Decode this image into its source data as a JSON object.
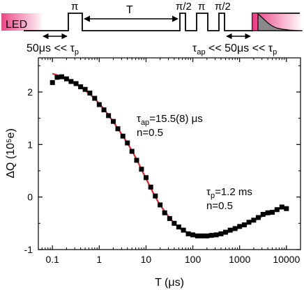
{
  "colors": {
    "pulse_line": "#000000",
    "led_pink": "#e8327a",
    "fit_curve": "#e8262a",
    "markers": "#000000",
    "decay_fill": "#8a8a8a"
  },
  "sequence": {
    "led_label": "LED",
    "pi1": "π",
    "T": "T",
    "pi2_half": "π/2",
    "pi3": "π",
    "pi4_half": "π/2",
    "delay_left_prefix": "50μs << τ",
    "delay_left_sub": "p",
    "delay_right_tau": "τ",
    "delay_right_sub1": "ap",
    "delay_right_mid": " << 50μs << τ",
    "delay_right_sub2": "p"
  },
  "annotations": {
    "a1_tau": "τ",
    "a1_sub": "ap",
    "a1_val": "=15.5(8) μs",
    "a1_n": "n=0.5",
    "a2_tau": "τ",
    "a2_sub": "p",
    "a2_val": "=1.2 ms",
    "a2_n": "n=0.5"
  },
  "chart_data": {
    "type": "scatter",
    "xscale": "log",
    "xlim": [
      0.05,
      20000
    ],
    "ylim": [
      -1,
      2.65
    ],
    "xlabel": "T (μs)",
    "ylabel": "ΔQ (10⁵e)",
    "xticks": [
      0.1,
      1,
      10,
      100,
      1000,
      10000
    ],
    "xtick_labels": [
      "0.1",
      "1",
      "10",
      "100",
      "1000",
      "10000"
    ],
    "yticks": [
      -1,
      0,
      1,
      2
    ],
    "ytick_labels": [
      "-1",
      "0",
      "1",
      "2"
    ],
    "series": [
      {
        "kind": "markers",
        "x": [
          0.1,
          0.126,
          0.158,
          0.2,
          0.25,
          0.32,
          0.4,
          0.5,
          0.63,
          0.8,
          1.0,
          1.26,
          1.58,
          2.0,
          2.5,
          3.2,
          4.0,
          5.0,
          6.3,
          8.0,
          10,
          12.6,
          15.8,
          20,
          25,
          32,
          40,
          50,
          63,
          80,
          100,
          126,
          158,
          200,
          250,
          316,
          400,
          500,
          630,
          800,
          1000,
          1260,
          1580,
          2000,
          2500,
          3160,
          4000,
          5000,
          6300,
          8000,
          10000
        ],
        "y": [
          2.18,
          2.28,
          2.29,
          2.25,
          2.2,
          2.16,
          2.1,
          2.05,
          1.98,
          1.88,
          1.76,
          1.66,
          1.55,
          1.44,
          1.3,
          1.16,
          1.03,
          0.87,
          0.7,
          0.53,
          0.37,
          0.19,
          0.02,
          -0.15,
          -0.3,
          -0.41,
          -0.5,
          -0.57,
          -0.63,
          -0.7,
          -0.72,
          -0.74,
          -0.74,
          -0.74,
          -0.73,
          -0.72,
          -0.7,
          -0.67,
          -0.63,
          -0.6,
          -0.56,
          -0.53,
          -0.48,
          -0.44,
          -0.39,
          -0.33,
          -0.3,
          -0.29,
          -0.24,
          -0.19,
          -0.22
        ]
      },
      {
        "kind": "fit",
        "x": [
          0.1,
          0.2,
          0.5,
          1,
          2,
          5,
          10,
          20,
          50,
          100,
          200,
          300,
          500,
          1000,
          2000,
          5000,
          8000,
          10000
        ],
        "y": [
          2.35,
          2.25,
          2.03,
          1.78,
          1.43,
          0.88,
          0.35,
          -0.15,
          -0.58,
          -0.7,
          -0.75,
          -0.74,
          -0.69,
          -0.58,
          -0.45,
          -0.27,
          -0.2,
          -0.2
        ]
      }
    ]
  }
}
